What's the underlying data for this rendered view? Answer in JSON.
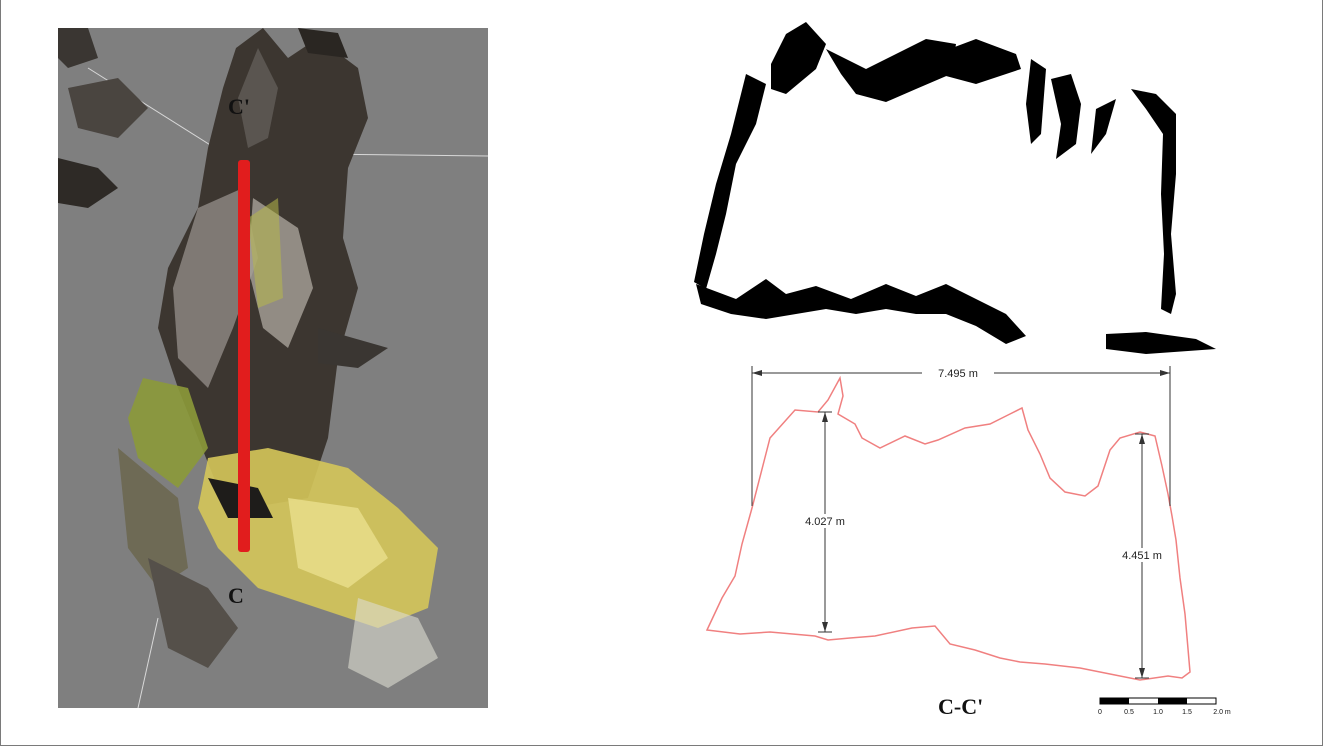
{
  "point_cloud": {
    "label_top": "C'",
    "label_bottom": "C",
    "section_line_color": "#e11d1d",
    "background_color": "#7f7f7f"
  },
  "profile": {
    "outline_color": "#f08080",
    "width_label": "7.495 m",
    "left_height_label": "4.027 m",
    "right_height_label": "4.451 m"
  },
  "section_title": "C-C'",
  "scale_bar": {
    "ticks": [
      "0",
      "0.5",
      "1.0",
      "1.5",
      "2.0 m"
    ]
  }
}
